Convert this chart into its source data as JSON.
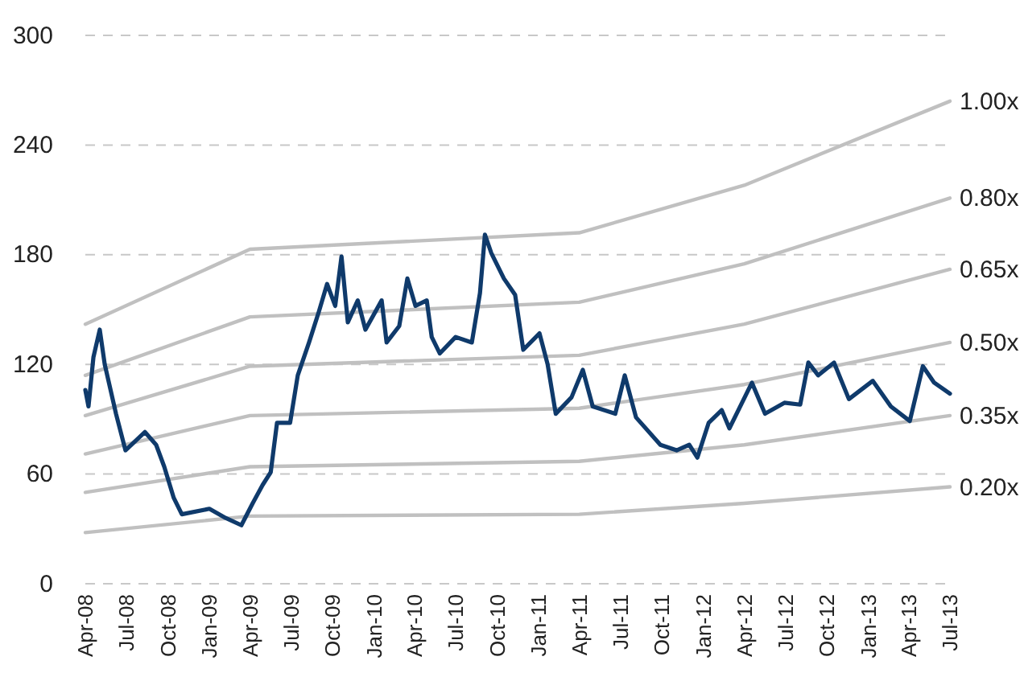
{
  "chart_data": {
    "type": "line",
    "xlim": [
      "2008-04",
      "2013-07"
    ],
    "ylim": [
      0,
      300
    ],
    "yticks": [
      0,
      60,
      120,
      180,
      240,
      300
    ],
    "xticks": [
      {
        "value": "2008-04",
        "label": "Apr-08"
      },
      {
        "value": "2008-07",
        "label": "Jul-08"
      },
      {
        "value": "2008-10",
        "label": "Oct-08"
      },
      {
        "value": "2009-01",
        "label": "Jan-09"
      },
      {
        "value": "2009-04",
        "label": "Apr-09"
      },
      {
        "value": "2009-07",
        "label": "Jul-09"
      },
      {
        "value": "2009-10",
        "label": "Oct-09"
      },
      {
        "value": "2010-01",
        "label": "Jan-10"
      },
      {
        "value": "2010-04",
        "label": "Apr-10"
      },
      {
        "value": "2010-07",
        "label": "Jul-10"
      },
      {
        "value": "2010-10",
        "label": "Oct-10"
      },
      {
        "value": "2011-01",
        "label": "Jan-11"
      },
      {
        "value": "2011-04",
        "label": "Apr-11"
      },
      {
        "value": "2011-07",
        "label": "Jul-11"
      },
      {
        "value": "2011-10",
        "label": "Oct-11"
      },
      {
        "value": "2012-01",
        "label": "Jan-12"
      },
      {
        "value": "2012-04",
        "label": "Apr-12"
      },
      {
        "value": "2012-07",
        "label": "Jul-12"
      },
      {
        "value": "2012-10",
        "label": "Oct-12"
      },
      {
        "value": "2013-01",
        "label": "Jan-13"
      },
      {
        "value": "2013-04",
        "label": "Apr-13"
      },
      {
        "value": "2013-07",
        "label": "Jul-13"
      }
    ],
    "grid": "y",
    "legend": false,
    "line_style": "solid",
    "marker": "none",
    "series": [
      {
        "name": "1.00x",
        "color": "#c0c0c0",
        "x": [
          "2008-04",
          "2009-04",
          "2011-04",
          "2012-04",
          "2013-07"
        ],
        "values": [
          142,
          183,
          192,
          218,
          264
        ]
      },
      {
        "name": "0.80x",
        "color": "#c0c0c0",
        "x": [
          "2008-04",
          "2009-04",
          "2011-04",
          "2012-04",
          "2013-07"
        ],
        "values": [
          114,
          146,
          154,
          175,
          211
        ]
      },
      {
        "name": "0.65x",
        "color": "#c0c0c0",
        "x": [
          "2008-04",
          "2009-04",
          "2011-04",
          "2012-04",
          "2013-07"
        ],
        "values": [
          92,
          119,
          125,
          142,
          172
        ]
      },
      {
        "name": "0.50x",
        "color": "#c0c0c0",
        "x": [
          "2008-04",
          "2009-04",
          "2011-04",
          "2012-04",
          "2013-07"
        ],
        "values": [
          71,
          92,
          96,
          109,
          132
        ]
      },
      {
        "name": "0.35x",
        "color": "#c0c0c0",
        "x": [
          "2008-04",
          "2009-04",
          "2011-04",
          "2012-04",
          "2013-07"
        ],
        "values": [
          50,
          64,
          67,
          76,
          92
        ]
      },
      {
        "name": "0.20x",
        "color": "#c0c0c0",
        "x": [
          "2008-04",
          "2009-04",
          "2011-04",
          "2012-04",
          "2013-07"
        ],
        "values": [
          28,
          37,
          38,
          44,
          53
        ]
      },
      {
        "color": "#0f3a6b",
        "x": [
          "2008-04-01",
          "2008-04-08",
          "2008-04-19",
          "2008-05-03",
          "2008-05-14",
          "2008-06-08",
          "2008-06-29",
          "2008-08-11",
          "2008-09-05",
          "2008-09-23",
          "2008-10-14",
          "2008-11-01",
          "2009-01-01",
          "2009-02-06",
          "2009-03-13",
          "2009-04-07",
          "2009-04-29",
          "2009-05-17",
          "2009-05-31",
          "2009-06-29",
          "2009-07-16",
          "2009-08-10",
          "2009-09-01",
          "2009-09-19",
          "2009-10-07",
          "2009-10-21",
          "2009-11-04",
          "2009-11-26",
          "2009-12-13",
          "2010-01-18",
          "2010-01-29",
          "2010-02-26",
          "2010-03-16",
          "2010-04-03",
          "2010-04-28",
          "2010-05-09",
          "2010-05-27",
          "2010-07-01",
          "2010-08-06",
          "2010-08-24",
          "2010-09-04",
          "2010-09-18",
          "2010-10-16",
          "2010-11-10",
          "2010-11-28",
          "2011-01-03",
          "2011-01-21",
          "2011-02-08",
          "2011-03-15",
          "2011-04-09",
          "2011-05-01",
          "2011-06-20",
          "2011-07-11",
          "2011-08-05",
          "2011-09-28",
          "2011-11-03",
          "2011-12-01",
          "2011-12-19",
          "2012-01-13",
          "2012-02-11",
          "2012-02-28",
          "2012-04-18",
          "2012-05-17",
          "2012-06-29",
          "2012-08-03",
          "2012-08-21",
          "2012-09-12",
          "2012-10-17",
          "2012-11-19",
          "2013-01-11",
          "2013-02-20",
          "2013-04-03",
          "2013-05-02",
          "2013-05-27",
          "2013-07-01"
        ],
        "values": [
          106,
          97,
          124,
          139,
          120,
          93,
          73,
          83,
          76,
          64,
          47,
          38,
          41,
          36,
          32,
          44,
          54,
          61,
          88,
          88,
          114,
          132,
          149,
          164,
          152,
          179,
          143,
          155,
          139,
          155,
          132,
          141,
          167,
          152,
          155,
          135,
          126,
          135,
          132,
          159,
          191,
          181,
          167,
          158,
          128,
          137,
          120,
          93,
          102,
          117,
          97,
          93,
          114,
          91,
          76,
          73,
          76,
          69,
          88,
          95,
          85,
          110,
          93,
          99,
          98,
          121,
          114,
          121,
          101,
          111,
          97,
          89,
          119,
          110,
          104
        ]
      }
    ]
  }
}
